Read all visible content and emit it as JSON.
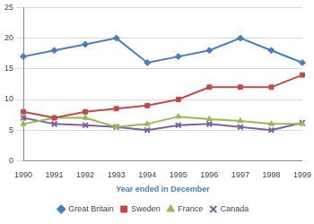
{
  "chart_data": {
    "type": "line",
    "x_label": "Year ended in December",
    "categories": [
      "1990",
      "1991",
      "1992",
      "1993",
      "1994",
      "1995",
      "1996",
      "1997",
      "1998",
      "1999"
    ],
    "series": [
      {
        "name": "Great Britain",
        "color": "#4a7ebb",
        "marker": "diamond",
        "values": [
          17,
          18,
          19,
          20,
          16,
          17,
          18,
          20,
          18,
          16
        ]
      },
      {
        "name": "Sweden",
        "color": "#be4b48",
        "marker": "square",
        "values": [
          8,
          7,
          8,
          8.5,
          9,
          10,
          12,
          12,
          12,
          14
        ]
      },
      {
        "name": "France",
        "color": "#98b954",
        "marker": "triangle",
        "values": [
          6,
          7,
          7,
          5.5,
          6,
          7.2,
          6.8,
          6.5,
          6,
          6
        ]
      },
      {
        "name": "Canada",
        "color": "#7d60a0",
        "marker": "x",
        "values": [
          7,
          6,
          5.8,
          5.5,
          5,
          5.8,
          6,
          5.5,
          5,
          6.2
        ]
      }
    ],
    "ylim": [
      0,
      25
    ],
    "yticks": [
      0,
      5,
      10,
      15,
      20,
      25
    ],
    "grid": true,
    "legend": "bottom"
  }
}
